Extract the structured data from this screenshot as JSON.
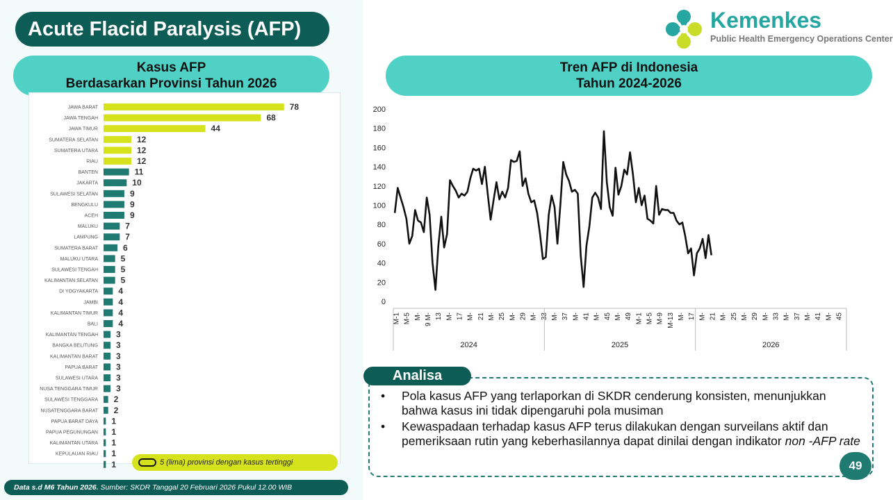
{
  "title": "Acute Flacid Paralysis (AFP)",
  "brand": {
    "name": "Kemenkes",
    "subtitle": "Public Health Emergency Operations Center"
  },
  "left_panel": {
    "header_line1": "Kasus AFP",
    "header_line2": "Berdasarkan Provinsi Tahun 2026",
    "legend": "5 (lima) provinsi dengan kasus tertinggi"
  },
  "right_panel": {
    "header_line1": "Tren AFP di Indonesia",
    "header_line2": "Tahun 2024-2026"
  },
  "analisa": {
    "title": "Analisa",
    "points": [
      "Pola kasus AFP yang terlaporkan di SKDR cenderung konsisten, menunjukkan bahwa kasus ini tidak dipengaruhi pola musiman",
      "Kewaspadaan terhadap kasus AFP terus dilakukan dengan surveilans aktif dan pemeriksaan rutin yang keberhasilannya dapat dinilai dengan indikator"
    ],
    "point2_italic": "non -AFP rate"
  },
  "footer": {
    "bold": "Data s.d M6 Tahun 2026.",
    "rest": " Sumber: SKDR Tanggal 20 Februari 2026 Pukul 12.00 WIB"
  },
  "page_number": "49",
  "colors": {
    "dark_teal": "#0e5c56",
    "teal": "#1f7a72",
    "light_teal": "#4fd1c5",
    "highlight": "#d6e21c"
  },
  "chart_data": [
    {
      "type": "bar",
      "orientation": "horizontal",
      "categories": [
        "JAWA BARAT",
        "JAWA TENGAH",
        "JAWA TIMUR",
        "SUMATERA SELATAN",
        "SUMATERA UTARA",
        "RIAU",
        "BANTEN",
        "JAKARTA",
        "SULAWESI SELATAN",
        "BENGKULU",
        "ACEH",
        "MALUKU",
        "LAMPUNG",
        "SUMATERA BARAT",
        "MALUKU UTARA",
        "SULAWESI TENGAH",
        "KALIMANTAN SELATAN",
        "DI YOGYAKARTA",
        "JAMBI",
        "KALIMANTAN TIMUR",
        "BALI",
        "KALIMANTAN TENGAH",
        "BANGKA BELITUNG",
        "KALIMANTAN BARAT",
        "PAPUA BARAT",
        "SULAWESI UTARA",
        "NUSA TENGGARA TIMUR",
        "SULAWESI TENGGARA",
        "NUSATENGGARA BARAT",
        "PAPUA BARAT DAYA",
        "PAPUA PEGUNUNGAN",
        "KALIMANTAN UTARA",
        "KEPULAUAN RIAU",
        ""
      ],
      "values": [
        78,
        68,
        44,
        12,
        12,
        12,
        11,
        10,
        9,
        9,
        9,
        7,
        7,
        6,
        5,
        5,
        5,
        4,
        4,
        4,
        4,
        3,
        3,
        3,
        3,
        3,
        3,
        2,
        2,
        1,
        1,
        1,
        1,
        1
      ],
      "highlight_count": 6,
      "highlight_color": "#d6e21c",
      "base_color": "#1f7a72"
    },
    {
      "type": "line",
      "ylim": [
        0,
        200
      ],
      "yticks": [
        0,
        20,
        40,
        60,
        80,
        100,
        120,
        140,
        160,
        180,
        200
      ],
      "x_tick_labels": [
        "M-1",
        "M-5",
        "M-",
        "9 M-",
        "13",
        "M-",
        "17",
        "M-",
        "21",
        "M-",
        "25",
        "M-",
        "29",
        "M-",
        "33",
        "M-",
        "37",
        "M-",
        "41",
        "M-",
        "45",
        "M-",
        "49",
        "M-1",
        "M-5",
        "M-9",
        "M-13",
        "M-",
        "17",
        "M-",
        "21",
        "M-",
        "25",
        "M-",
        "29",
        "M-",
        "33",
        "M-",
        "37",
        "M-",
        "41",
        "M-",
        "45"
      ],
      "groups": [
        {
          "label": "2024",
          "weeks": 52
        },
        {
          "label": "2025",
          "weeks": 52
        },
        {
          "label": "2026",
          "weeks": 52
        }
      ],
      "total_weeks": 156,
      "series": [
        {
          "values": [
            92,
            118,
            108,
            98,
            86,
            60,
            68,
            95,
            84,
            82,
            72,
            108,
            90,
            40,
            12,
            58,
            88,
            56,
            70,
            126,
            120,
            115,
            108,
            112,
            110,
            114,
            128,
            138,
            136,
            138,
            122,
            140,
            112,
            85,
            105,
            124,
            106,
            114,
            108,
            118,
            147,
            145,
            146,
            156,
            120,
            128,
            112,
            103,
            105,
            92,
            70,
            44,
            46,
            90,
            110,
            98,
            60,
            100,
            145,
            132,
            125,
            114,
            116,
            112,
            48,
            15,
            58,
            78,
            108,
            113,
            108,
            96,
            177,
            124,
            98,
            89,
            139,
            111,
            120,
            137,
            132,
            155,
            132,
            103,
            118,
            100,
            110,
            86,
            84,
            81,
            120,
            90,
            96,
            95,
            95,
            92,
            92,
            84,
            80,
            82,
            68,
            50,
            55,
            27,
            50,
            55,
            65,
            45,
            69,
            48
          ]
        }
      ]
    }
  ]
}
